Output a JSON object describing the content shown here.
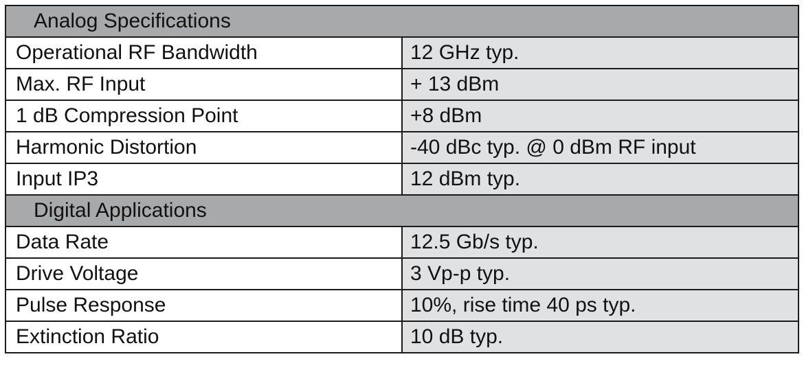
{
  "sections": [
    {
      "title": "Analog Specifications",
      "rows": [
        {
          "label": "Operational RF Bandwidth",
          "value": "12 GHz typ."
        },
        {
          "label": "Max. RF Input",
          "value": "+ 13 dBm"
        },
        {
          "label": "1 dB Compression Point",
          "value": "+8 dBm"
        },
        {
          "label": "Harmonic Distortion",
          "value": "-40 dBc typ. @ 0 dBm RF input"
        },
        {
          "label": "Input IP3",
          "value": "12 dBm typ."
        }
      ]
    },
    {
      "title": "Digital Applications",
      "rows": [
        {
          "label": "Data Rate",
          "value": "12.5 Gb/s typ."
        },
        {
          "label": "Drive Voltage",
          "value": "3 Vp-p typ."
        },
        {
          "label": "Pulse Response",
          "value": "10%, rise time 40 ps typ."
        },
        {
          "label": "Extinction Ratio",
          "value": "10 dB typ."
        }
      ]
    }
  ],
  "colors": {
    "section_header": "#a8a9ab",
    "value_cell": "#e0e1e3",
    "border": "#1a1a1a"
  }
}
